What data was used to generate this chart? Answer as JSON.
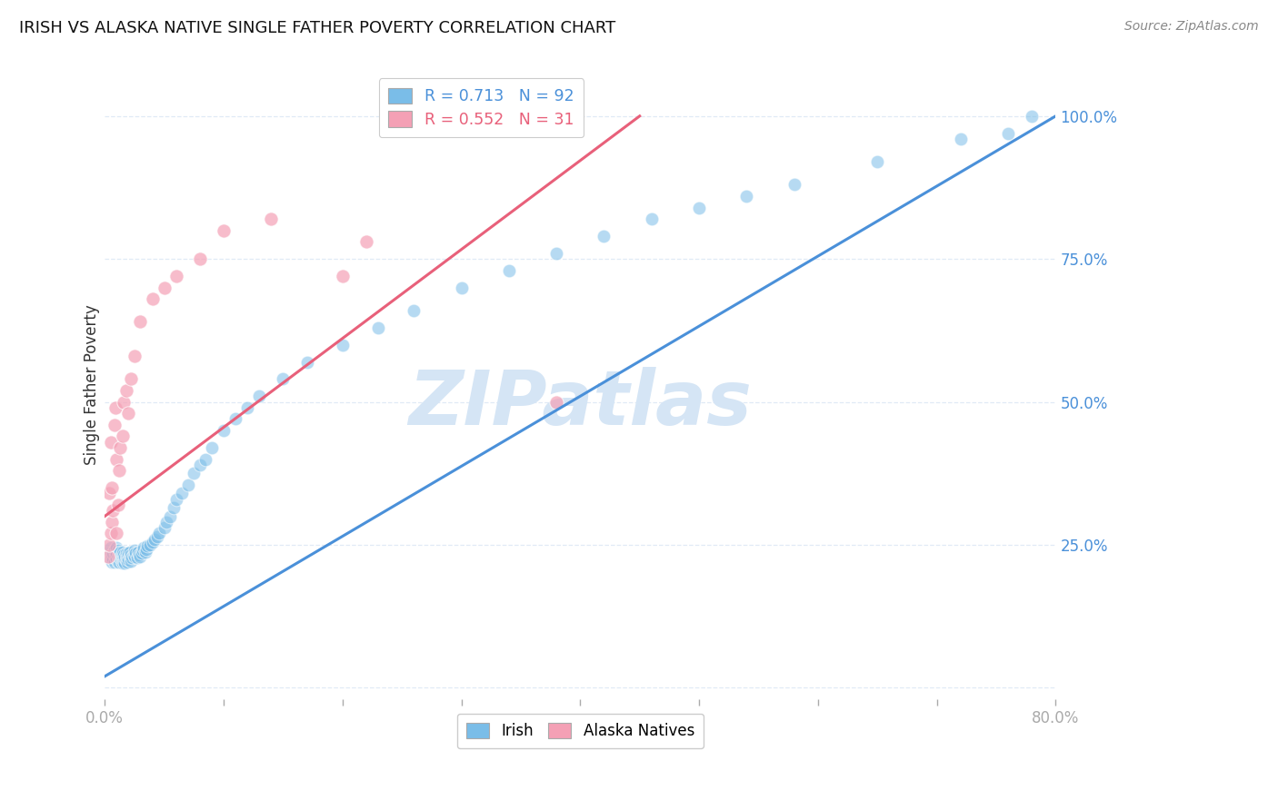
{
  "title": "IRISH VS ALASKA NATIVE SINGLE FATHER POVERTY CORRELATION CHART",
  "source": "Source: ZipAtlas.com",
  "ylabel": "Single Father Poverty",
  "xlim": [
    0.0,
    0.8
  ],
  "ylim": [
    -0.02,
    1.08
  ],
  "irish_R": 0.713,
  "irish_N": 92,
  "alaska_R": 0.552,
  "alaska_N": 31,
  "blue_color": "#7abde8",
  "pink_color": "#f4a0b5",
  "blue_line_color": "#4a90d9",
  "pink_line_color": "#e8607a",
  "axis_color": "#4a90d9",
  "grid_color": "#dde8f5",
  "watermark_color": "#d5e5f5",
  "blue_line_x0": 0.0,
  "blue_line_y0": 0.02,
  "blue_line_x1": 0.8,
  "blue_line_y1": 1.0,
  "pink_line_x0": 0.0,
  "pink_line_y0": 0.3,
  "pink_line_x1": 0.45,
  "pink_line_y1": 1.0,
  "irish_x": [
    0.005,
    0.005,
    0.005,
    0.006,
    0.006,
    0.007,
    0.007,
    0.008,
    0.008,
    0.009,
    0.01,
    0.01,
    0.01,
    0.011,
    0.011,
    0.011,
    0.012,
    0.012,
    0.012,
    0.013,
    0.013,
    0.014,
    0.014,
    0.015,
    0.015,
    0.015,
    0.016,
    0.016,
    0.017,
    0.017,
    0.018,
    0.018,
    0.019,
    0.019,
    0.02,
    0.02,
    0.021,
    0.021,
    0.022,
    0.022,
    0.023,
    0.024,
    0.025,
    0.025,
    0.026,
    0.027,
    0.028,
    0.029,
    0.03,
    0.031,
    0.032,
    0.033,
    0.034,
    0.035,
    0.036,
    0.038,
    0.04,
    0.042,
    0.044,
    0.046,
    0.05,
    0.052,
    0.055,
    0.058,
    0.06,
    0.065,
    0.07,
    0.075,
    0.08,
    0.085,
    0.09,
    0.1,
    0.11,
    0.12,
    0.13,
    0.15,
    0.17,
    0.2,
    0.23,
    0.26,
    0.3,
    0.34,
    0.38,
    0.42,
    0.46,
    0.5,
    0.54,
    0.58,
    0.65,
    0.72,
    0.76,
    0.78
  ],
  "irish_y": [
    0.235,
    0.225,
    0.245,
    0.22,
    0.23,
    0.225,
    0.235,
    0.22,
    0.24,
    0.23,
    0.225,
    0.235,
    0.245,
    0.22,
    0.23,
    0.24,
    0.225,
    0.235,
    0.22,
    0.228,
    0.238,
    0.222,
    0.232,
    0.218,
    0.228,
    0.238,
    0.222,
    0.232,
    0.218,
    0.228,
    0.225,
    0.235,
    0.22,
    0.23,
    0.225,
    0.235,
    0.228,
    0.238,
    0.222,
    0.232,
    0.228,
    0.232,
    0.23,
    0.24,
    0.235,
    0.228,
    0.238,
    0.232,
    0.23,
    0.235,
    0.24,
    0.245,
    0.238,
    0.242,
    0.248,
    0.25,
    0.255,
    0.26,
    0.265,
    0.27,
    0.28,
    0.29,
    0.3,
    0.315,
    0.33,
    0.34,
    0.355,
    0.375,
    0.39,
    0.4,
    0.42,
    0.45,
    0.47,
    0.49,
    0.51,
    0.54,
    0.57,
    0.6,
    0.63,
    0.66,
    0.7,
    0.73,
    0.76,
    0.79,
    0.82,
    0.84,
    0.86,
    0.88,
    0.92,
    0.96,
    0.97,
    1.0
  ],
  "alaska_x": [
    0.003,
    0.004,
    0.004,
    0.005,
    0.005,
    0.006,
    0.006,
    0.007,
    0.008,
    0.009,
    0.01,
    0.01,
    0.011,
    0.012,
    0.013,
    0.015,
    0.016,
    0.018,
    0.02,
    0.022,
    0.025,
    0.03,
    0.04,
    0.05,
    0.06,
    0.08,
    0.1,
    0.14,
    0.2,
    0.22,
    0.38
  ],
  "alaska_y": [
    0.23,
    0.25,
    0.34,
    0.27,
    0.43,
    0.29,
    0.35,
    0.31,
    0.46,
    0.49,
    0.27,
    0.4,
    0.32,
    0.38,
    0.42,
    0.44,
    0.5,
    0.52,
    0.48,
    0.54,
    0.58,
    0.64,
    0.68,
    0.7,
    0.72,
    0.75,
    0.8,
    0.82,
    0.72,
    0.78,
    0.5
  ]
}
